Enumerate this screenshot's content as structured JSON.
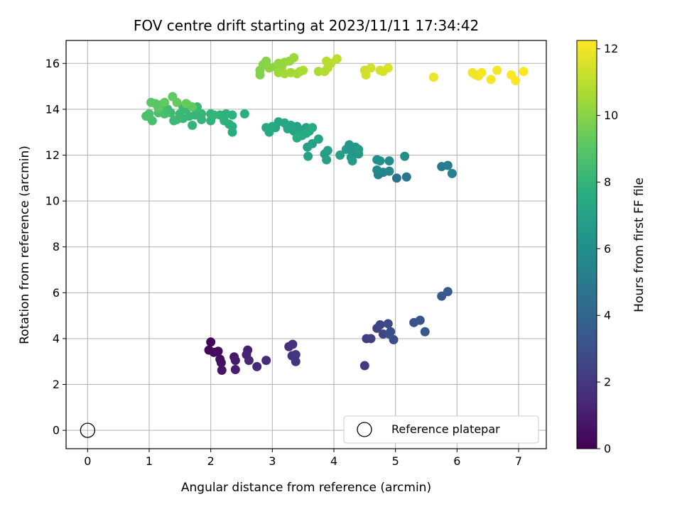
{
  "chart_data": {
    "type": "scatter",
    "title": "FOV centre drift starting at 2023/11/11 17:34:42",
    "xlabel": "Angular distance from reference (arcmin)",
    "ylabel": "Rotation from reference (arcmin)",
    "xlim": [
      -0.35,
      7.45
    ],
    "ylim": [
      -0.8,
      17.0
    ],
    "xticks": [
      0,
      1,
      2,
      3,
      4,
      5,
      6,
      7
    ],
    "yticks": [
      0,
      2,
      4,
      6,
      8,
      10,
      12,
      14,
      16
    ],
    "grid": true,
    "legend": {
      "placement": "lower-right",
      "entries": [
        "Reference platepar"
      ]
    },
    "reference_point": {
      "x": 0,
      "y": 0,
      "label": "Reference platepar"
    },
    "colorbar": {
      "label": "Hours from first FF file",
      "range": [
        0,
        12.25
      ],
      "ticks": [
        0,
        2,
        4,
        6,
        8,
        10,
        12
      ],
      "colormap": "viridis"
    },
    "series": [
      {
        "columns": [
          "x",
          "y",
          "hours"
        ],
        "points": [
          [
            2.0,
            3.85,
            0.1
          ],
          [
            1.97,
            3.5,
            0.2
          ],
          [
            2.05,
            3.4,
            0.3
          ],
          [
            2.12,
            3.45,
            0.4
          ],
          [
            2.15,
            3.1,
            0.5
          ],
          [
            2.17,
            2.95,
            0.6
          ],
          [
            2.18,
            2.62,
            0.7
          ],
          [
            2.38,
            3.2,
            0.8
          ],
          [
            2.4,
            3.05,
            0.9
          ],
          [
            2.4,
            2.65,
            1.0
          ],
          [
            2.6,
            3.5,
            1.1
          ],
          [
            2.58,
            3.3,
            1.2
          ],
          [
            2.62,
            3.05,
            1.3
          ],
          [
            2.75,
            2.78,
            1.4
          ],
          [
            2.9,
            3.05,
            1.5
          ],
          [
            3.27,
            3.65,
            1.6
          ],
          [
            3.33,
            3.75,
            1.7
          ],
          [
            3.32,
            3.25,
            1.8
          ],
          [
            3.38,
            3.3,
            1.9
          ],
          [
            3.38,
            3.0,
            2.0
          ],
          [
            4.5,
            2.82,
            2.1
          ],
          [
            4.53,
            4.0,
            2.2
          ],
          [
            4.6,
            4.0,
            2.3
          ],
          [
            4.7,
            4.45,
            2.4
          ],
          [
            4.75,
            4.6,
            2.5
          ],
          [
            4.8,
            4.2,
            2.6
          ],
          [
            4.88,
            4.65,
            2.7
          ],
          [
            4.92,
            4.3,
            2.8
          ],
          [
            4.97,
            3.95,
            2.9
          ],
          [
            4.9,
            4.2,
            3.0
          ],
          [
            5.3,
            4.7,
            3.1
          ],
          [
            5.4,
            4.8,
            3.2
          ],
          [
            5.48,
            4.3,
            3.3
          ],
          [
            5.75,
            5.85,
            3.4
          ],
          [
            5.85,
            6.05,
            3.5
          ],
          [
            5.02,
            11.0,
            4.6
          ],
          [
            5.18,
            11.05,
            4.8
          ],
          [
            5.75,
            11.5,
            5.0
          ],
          [
            5.85,
            11.55,
            5.1
          ],
          [
            5.92,
            11.2,
            5.3
          ],
          [
            4.72,
            11.15,
            5.4
          ],
          [
            4.8,
            11.25,
            5.5
          ],
          [
            4.9,
            11.3,
            5.7
          ],
          [
            4.7,
            11.35,
            5.8
          ],
          [
            4.9,
            11.75,
            5.9
          ],
          [
            5.15,
            11.95,
            6.0
          ],
          [
            4.75,
            11.75,
            6.1
          ],
          [
            4.7,
            11.8,
            6.2
          ],
          [
            4.25,
            12.45,
            6.4
          ],
          [
            4.3,
            12.15,
            6.4
          ],
          [
            4.35,
            12.35,
            6.5
          ],
          [
            4.4,
            12.05,
            6.5
          ],
          [
            4.2,
            12.25,
            6.6
          ],
          [
            4.28,
            11.9,
            6.6
          ],
          [
            4.4,
            12.25,
            6.7
          ],
          [
            4.3,
            11.75,
            6.7
          ],
          [
            4.1,
            12.0,
            6.8
          ],
          [
            3.85,
            12.05,
            6.8
          ],
          [
            3.88,
            11.8,
            6.9
          ],
          [
            3.9,
            12.2,
            6.9
          ],
          [
            3.58,
            11.95,
            7.0
          ],
          [
            3.57,
            12.35,
            7.0
          ],
          [
            3.65,
            12.5,
            7.0
          ],
          [
            3.75,
            12.7,
            7.1
          ],
          [
            3.55,
            13.2,
            7.1
          ],
          [
            3.6,
            13.05,
            7.1
          ],
          [
            3.5,
            13.1,
            7.1
          ],
          [
            3.45,
            13.0,
            7.2
          ],
          [
            3.4,
            13.25,
            7.2
          ],
          [
            3.35,
            13.05,
            7.2
          ],
          [
            3.3,
            13.3,
            7.2
          ],
          [
            3.25,
            13.15,
            7.3
          ],
          [
            3.2,
            13.4,
            7.3
          ],
          [
            3.1,
            13.45,
            7.3
          ],
          [
            3.05,
            13.2,
            7.3
          ],
          [
            3.0,
            13.25,
            7.4
          ],
          [
            2.95,
            13.0,
            7.4
          ],
          [
            2.9,
            13.2,
            7.4
          ],
          [
            3.65,
            13.2,
            7.5
          ],
          [
            3.55,
            12.95,
            7.5
          ],
          [
            3.48,
            12.85,
            7.5
          ],
          [
            3.4,
            12.75,
            7.6
          ],
          [
            2.35,
            13.0,
            7.6
          ],
          [
            2.35,
            13.25,
            7.7
          ],
          [
            2.3,
            13.35,
            7.7
          ],
          [
            2.22,
            13.5,
            7.8
          ],
          [
            2.35,
            13.75,
            7.8
          ],
          [
            2.25,
            13.8,
            7.8
          ],
          [
            2.15,
            13.75,
            7.9
          ],
          [
            2.0,
            13.8,
            7.9
          ],
          [
            2.0,
            13.5,
            7.9
          ],
          [
            1.85,
            13.55,
            8.0
          ],
          [
            1.7,
            13.3,
            8.0
          ],
          [
            1.75,
            13.75,
            8.0
          ],
          [
            1.85,
            13.8,
            8.1
          ],
          [
            1.65,
            13.7,
            8.1
          ],
          [
            1.6,
            14.0,
            8.1
          ],
          [
            1.55,
            14.1,
            8.2
          ],
          [
            1.5,
            13.8,
            8.2
          ],
          [
            1.45,
            13.55,
            8.3
          ],
          [
            1.4,
            13.5,
            8.3
          ],
          [
            1.35,
            13.85,
            8.4
          ],
          [
            1.3,
            14.0,
            8.4
          ],
          [
            1.25,
            13.8,
            8.5
          ],
          [
            1.2,
            14.2,
            8.5
          ],
          [
            1.15,
            13.85,
            8.6
          ],
          [
            1.05,
            13.5,
            8.6
          ],
          [
            1.0,
            13.8,
            8.7
          ],
          [
            0.95,
            13.7,
            8.7
          ],
          [
            2.05,
            13.75,
            8.0
          ],
          [
            2.55,
            13.8,
            7.7
          ],
          [
            1.78,
            14.1,
            8.2
          ],
          [
            1.62,
            14.2,
            8.3
          ],
          [
            1.55,
            13.6,
            8.1
          ],
          [
            1.03,
            14.3,
            9.0
          ],
          [
            1.1,
            14.25,
            9.1
          ],
          [
            1.15,
            14.05,
            9.1
          ],
          [
            1.25,
            14.3,
            9.2
          ],
          [
            1.38,
            14.55,
            9.2
          ],
          [
            1.45,
            14.3,
            9.3
          ],
          [
            1.6,
            14.25,
            9.3
          ],
          [
            1.7,
            14.1,
            9.2
          ],
          [
            2.8,
            15.5,
            9.9
          ],
          [
            2.8,
            15.7,
            9.9
          ],
          [
            2.85,
            15.95,
            10.0
          ],
          [
            2.9,
            16.1,
            10.0
          ],
          [
            2.95,
            15.8,
            10.1
          ],
          [
            3.05,
            15.85,
            10.1
          ],
          [
            3.1,
            16.0,
            10.2
          ],
          [
            3.15,
            15.8,
            10.2
          ],
          [
            3.2,
            16.05,
            10.3
          ],
          [
            3.28,
            16.1,
            10.3
          ],
          [
            3.35,
            16.25,
            10.4
          ],
          [
            3.1,
            15.6,
            10.4
          ],
          [
            3.2,
            15.55,
            10.5
          ],
          [
            3.3,
            15.6,
            10.5
          ],
          [
            3.4,
            15.55,
            10.6
          ],
          [
            3.45,
            15.65,
            10.6
          ],
          [
            3.5,
            15.7,
            10.7
          ],
          [
            3.75,
            15.65,
            10.7
          ],
          [
            3.85,
            15.65,
            10.8
          ],
          [
            3.9,
            15.8,
            10.8
          ],
          [
            3.95,
            16.0,
            10.9
          ],
          [
            3.88,
            16.1,
            10.9
          ],
          [
            4.05,
            16.2,
            11.0
          ],
          [
            4.5,
            15.7,
            11.3
          ],
          [
            4.52,
            15.5,
            11.4
          ],
          [
            4.6,
            15.8,
            11.4
          ],
          [
            4.75,
            15.7,
            11.5
          ],
          [
            4.8,
            15.65,
            11.5
          ],
          [
            4.88,
            15.8,
            11.6
          ],
          [
            5.62,
            15.4,
            11.9
          ],
          [
            6.25,
            15.6,
            12.0
          ],
          [
            6.3,
            15.5,
            12.0
          ],
          [
            6.35,
            15.45,
            12.0
          ],
          [
            6.4,
            15.6,
            12.1
          ],
          [
            6.55,
            15.3,
            12.1
          ],
          [
            6.65,
            15.7,
            12.1
          ],
          [
            6.88,
            15.5,
            12.2
          ],
          [
            6.95,
            15.25,
            12.2
          ],
          [
            7.08,
            15.65,
            12.2
          ]
        ]
      }
    ]
  }
}
